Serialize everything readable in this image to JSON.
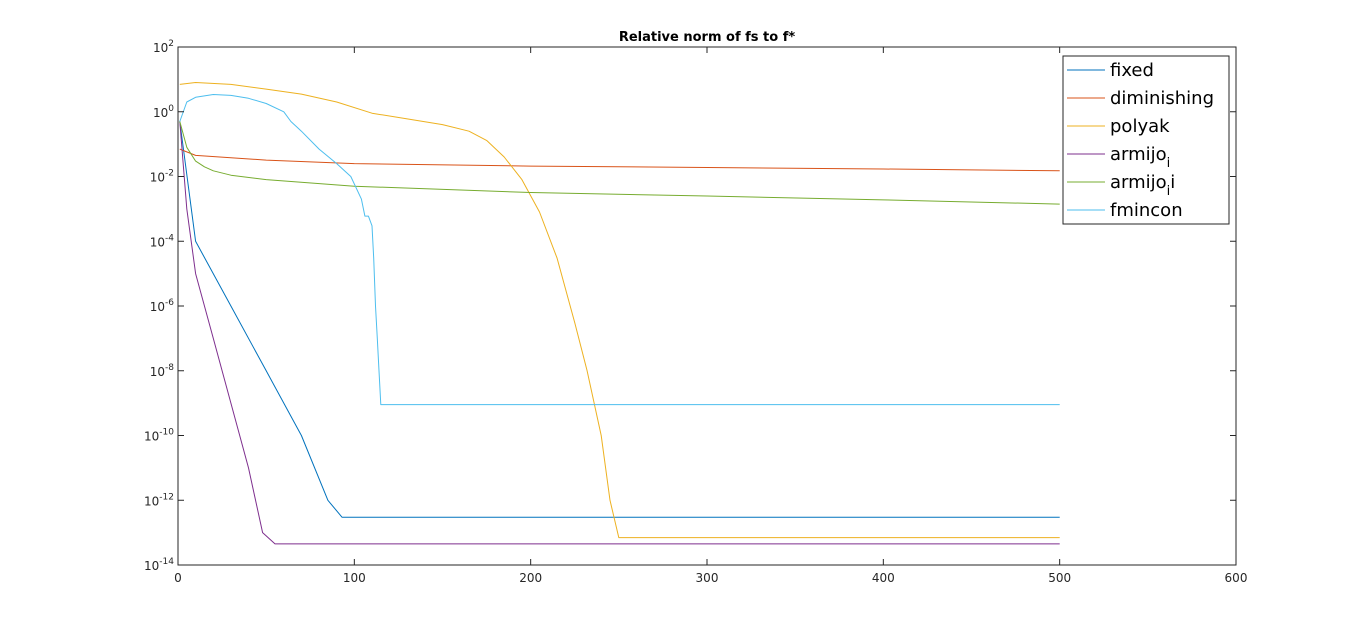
{
  "chart_data": {
    "type": "line",
    "title": "Relative norm of fs to f*",
    "xlabel": "",
    "ylabel": "",
    "y_scale": "log",
    "xlim": [
      0,
      600
    ],
    "ylim": [
      1e-14,
      100
    ],
    "grid": false,
    "legend_position": "top-right",
    "x_ticks": [
      {
        "value": 0,
        "label": "0"
      },
      {
        "value": 100,
        "label": "100"
      },
      {
        "value": 200,
        "label": "200"
      },
      {
        "value": 300,
        "label": "300"
      },
      {
        "value": 400,
        "label": "400"
      },
      {
        "value": 500,
        "label": "500"
      },
      {
        "value": 600,
        "label": "600"
      }
    ],
    "y_ticks": [
      {
        "value": 1e-14,
        "base": "10",
        "exp": "-14"
      },
      {
        "value": 1e-12,
        "base": "10",
        "exp": "-12"
      },
      {
        "value": 1e-10,
        "base": "10",
        "exp": "-10"
      },
      {
        "value": 1e-08,
        "base": "10",
        "exp": "-8"
      },
      {
        "value": 1e-06,
        "base": "10",
        "exp": "-6"
      },
      {
        "value": 0.0001,
        "base": "10",
        "exp": "-4"
      },
      {
        "value": 0.01,
        "base": "10",
        "exp": "-2"
      },
      {
        "value": 1,
        "base": "10",
        "exp": "0"
      },
      {
        "value": 100,
        "base": "10",
        "exp": "2"
      }
    ],
    "series": [
      {
        "name": "fixed",
        "label_main": "fixed",
        "label_sub": "",
        "label_tail": "",
        "color": "#0072bd",
        "x": [
          1,
          10,
          30,
          50,
          70,
          85,
          93,
          100,
          500
        ],
        "y": [
          0.5,
          0.0001,
          1e-06,
          1e-08,
          1e-10,
          1e-12,
          3e-13,
          3e-13,
          3e-13
        ]
      },
      {
        "name": "diminishing",
        "label_main": "diminishing",
        "label_sub": "",
        "label_tail": "",
        "color": "#d95319",
        "x": [
          1,
          10,
          50,
          100,
          200,
          300,
          400,
          500
        ],
        "y": [
          0.07,
          0.045,
          0.032,
          0.025,
          0.021,
          0.019,
          0.017,
          0.015
        ]
      },
      {
        "name": "polyak",
        "label_main": "polyak",
        "label_sub": "",
        "label_tail": "",
        "color": "#edb120",
        "x": [
          1,
          10,
          30,
          50,
          70,
          90,
          110,
          130,
          150,
          165,
          175,
          185,
          195,
          205,
          215,
          225,
          232,
          240,
          245,
          250,
          300,
          400,
          500
        ],
        "y": [
          7,
          8,
          7,
          5,
          3.5,
          2,
          0.9,
          0.6,
          0.4,
          0.25,
          0.13,
          0.04,
          0.008,
          0.0008,
          3e-05,
          3e-07,
          1e-08,
          1e-10,
          1e-12,
          7e-14,
          7e-14,
          7e-14,
          7e-14
        ]
      },
      {
        "name": "armijo_i (1)",
        "label_main": "armijo",
        "label_sub": "i",
        "label_tail": "",
        "color": "#7e2f8e",
        "x": [
          1,
          5,
          10,
          20,
          30,
          40,
          48,
          55,
          100,
          200,
          300,
          400,
          500
        ],
        "y": [
          0.5,
          0.001,
          1e-05,
          1e-07,
          1e-09,
          1e-11,
          1e-13,
          4.5e-14,
          4.5e-14,
          4.5e-14,
          4.5e-14,
          4.5e-14,
          4.5e-14
        ]
      },
      {
        "name": "armijo_i (2)",
        "label_main": "armijo",
        "label_sub": "i",
        "label_tail": "i",
        "color": "#77ac30",
        "x": [
          1,
          5,
          10,
          15,
          20,
          30,
          50,
          100,
          200,
          300,
          400,
          500
        ],
        "y": [
          0.5,
          0.08,
          0.03,
          0.02,
          0.015,
          0.011,
          0.008,
          0.005,
          0.0032,
          0.0025,
          0.0019,
          0.0014
        ]
      },
      {
        "name": "fmincon",
        "label_main": "fmincon",
        "label_sub": "",
        "label_tail": "",
        "color": "#4dbeee",
        "x": [
          1,
          5,
          10,
          20,
          30,
          40,
          50,
          60,
          64,
          70,
          80,
          90,
          98,
          104,
          106,
          108,
          110,
          111,
          112,
          113,
          114,
          115,
          116,
          200,
          300,
          400,
          500
        ],
        "y": [
          0.5,
          2,
          2.8,
          3.4,
          3.2,
          2.6,
          1.8,
          1,
          0.5,
          0.25,
          0.07,
          0.025,
          0.01,
          0.002,
          0.0006,
          0.0006,
          0.0003,
          3e-05,
          1e-06,
          1e-07,
          1e-08,
          9e-10,
          9e-10,
          9e-10,
          9e-10,
          9e-10,
          9e-10
        ]
      }
    ]
  }
}
